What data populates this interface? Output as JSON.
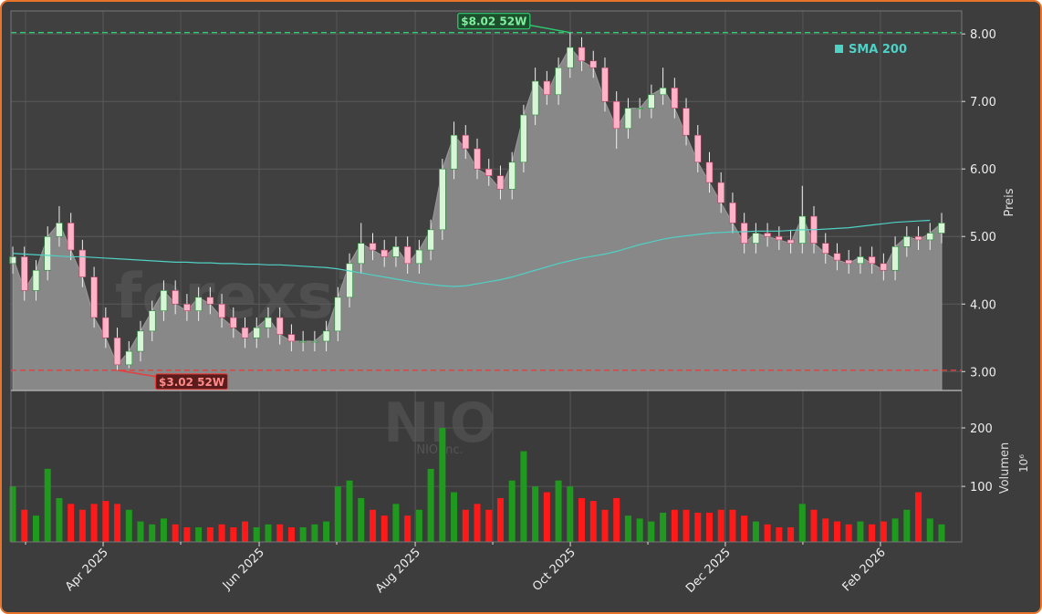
{
  "chart_data": {
    "type": "candlestick",
    "x": [
      0,
      1,
      2,
      3,
      4,
      5,
      6,
      7,
      8,
      9,
      10,
      11,
      12,
      13,
      14,
      15,
      16,
      17,
      18,
      19,
      20,
      21,
      22,
      23,
      24,
      25,
      26,
      27,
      28,
      29,
      30,
      31,
      32,
      33,
      34,
      35,
      36,
      37,
      38,
      39,
      40,
      41,
      42,
      43,
      44,
      45,
      46,
      47,
      48,
      49,
      50,
      51,
      52,
      53,
      54,
      55,
      56,
      57,
      58,
      59,
      60,
      61,
      62,
      63,
      64,
      65,
      66,
      67,
      68,
      69,
      70,
      71,
      72,
      73,
      74,
      75,
      76,
      77,
      78,
      79,
      80
    ],
    "open": [
      4.6,
      4.7,
      4.2,
      4.5,
      5.0,
      5.2,
      4.8,
      4.4,
      3.8,
      3.5,
      3.1,
      3.3,
      3.6,
      3.9,
      4.2,
      4.0,
      3.9,
      4.1,
      4.0,
      3.8,
      3.65,
      3.5,
      3.65,
      3.8,
      3.55,
      3.45,
      3.45,
      3.45,
      3.6,
      4.1,
      4.6,
      4.9,
      4.8,
      4.7,
      4.85,
      4.6,
      4.8,
      5.1,
      6.0,
      6.5,
      6.3,
      6.0,
      5.9,
      5.7,
      6.1,
      6.8,
      7.3,
      7.1,
      7.5,
      7.8,
      7.6,
      7.5,
      7.0,
      6.6,
      6.9,
      6.9,
      7.1,
      7.2,
      6.9,
      6.5,
      6.1,
      5.8,
      5.5,
      5.2,
      4.9,
      5.05,
      5.0,
      4.95,
      4.9,
      5.3,
      4.9,
      4.75,
      4.65,
      4.6,
      4.7,
      4.6,
      4.5,
      4.85,
      5.0,
      4.95,
      5.05
    ],
    "high": [
      4.85,
      4.85,
      4.65,
      5.15,
      5.45,
      5.35,
      4.95,
      4.55,
      3.95,
      3.65,
      3.45,
      3.75,
      4.05,
      4.35,
      4.35,
      4.15,
      4.25,
      4.25,
      4.15,
      3.95,
      3.8,
      3.8,
      3.95,
      3.95,
      3.7,
      3.6,
      3.6,
      3.75,
      4.25,
      4.75,
      5.2,
      5.05,
      4.95,
      5.0,
      5.0,
      4.95,
      5.25,
      6.15,
      6.7,
      6.65,
      6.45,
      6.15,
      6.05,
      6.25,
      6.95,
      7.5,
      7.45,
      7.65,
      8.02,
      7.95,
      7.75,
      7.65,
      7.15,
      7.05,
      7.05,
      7.25,
      7.5,
      7.35,
      7.05,
      6.65,
      6.25,
      5.95,
      5.65,
      5.35,
      5.2,
      5.2,
      5.15,
      5.1,
      5.75,
      5.45,
      5.05,
      4.9,
      4.8,
      4.85,
      4.85,
      4.75,
      5.0,
      5.15,
      5.15,
      5.2,
      5.35
    ],
    "low": [
      4.45,
      4.05,
      4.05,
      4.35,
      4.85,
      4.65,
      4.25,
      3.65,
      3.35,
      3.02,
      3.05,
      3.15,
      3.45,
      3.75,
      3.85,
      3.75,
      3.75,
      3.85,
      3.65,
      3.5,
      3.35,
      3.35,
      3.5,
      3.4,
      3.3,
      3.3,
      3.3,
      3.3,
      3.45,
      3.95,
      4.45,
      4.65,
      4.55,
      4.55,
      4.45,
      4.45,
      4.65,
      4.95,
      5.85,
      6.15,
      5.85,
      5.75,
      5.55,
      5.55,
      5.95,
      6.65,
      6.95,
      6.95,
      7.35,
      7.45,
      7.35,
      6.85,
      6.3,
      6.45,
      6.75,
      6.75,
      6.95,
      6.75,
      6.35,
      5.95,
      5.65,
      5.35,
      5.05,
      4.75,
      4.75,
      4.85,
      4.8,
      4.75,
      4.75,
      4.75,
      4.6,
      4.5,
      4.45,
      4.45,
      4.45,
      4.35,
      4.35,
      4.7,
      4.8,
      4.8,
      4.9
    ],
    "close": [
      4.7,
      4.2,
      4.5,
      5.0,
      5.2,
      4.8,
      4.4,
      3.8,
      3.5,
      3.1,
      3.3,
      3.6,
      3.9,
      4.2,
      4.0,
      3.9,
      4.1,
      4.0,
      3.8,
      3.65,
      3.5,
      3.65,
      3.8,
      3.55,
      3.45,
      3.45,
      3.45,
      3.6,
      4.1,
      4.6,
      4.9,
      4.8,
      4.7,
      4.85,
      4.6,
      4.8,
      5.1,
      6.0,
      6.5,
      6.3,
      6.0,
      5.9,
      5.7,
      6.1,
      6.8,
      7.3,
      7.1,
      7.5,
      7.8,
      7.6,
      7.5,
      7.0,
      6.6,
      6.9,
      6.9,
      7.1,
      7.2,
      6.9,
      6.5,
      6.1,
      5.8,
      5.5,
      5.2,
      4.9,
      5.05,
      5.0,
      4.95,
      4.9,
      5.3,
      4.9,
      4.75,
      4.65,
      4.6,
      4.7,
      4.6,
      4.5,
      4.85,
      5.0,
      4.95,
      5.05,
      5.2
    ],
    "volume": [
      100,
      60,
      50,
      130,
      80,
      70,
      60,
      70,
      75,
      70,
      60,
      40,
      35,
      45,
      35,
      30,
      30,
      30,
      35,
      30,
      40,
      30,
      35,
      35,
      30,
      30,
      35,
      40,
      100,
      110,
      80,
      60,
      50,
      70,
      50,
      60,
      130,
      200,
      90,
      60,
      70,
      60,
      80,
      110,
      160,
      100,
      90,
      110,
      100,
      80,
      75,
      60,
      80,
      50,
      45,
      40,
      55,
      60,
      60,
      55,
      55,
      60,
      60,
      50,
      40,
      35,
      30,
      30,
      70,
      60,
      45,
      40,
      35,
      40,
      35,
      40,
      45,
      60,
      90,
      45,
      35
    ],
    "sma": {
      "name": "SMA 200",
      "color": "#4fd1c5",
      "values": [
        4.75,
        4.74,
        4.73,
        4.72,
        4.71,
        4.7,
        4.7,
        4.69,
        4.68,
        4.67,
        4.66,
        4.65,
        4.64,
        4.63,
        4.62,
        4.62,
        4.61,
        4.61,
        4.6,
        4.6,
        4.59,
        4.59,
        4.58,
        4.58,
        4.57,
        4.56,
        4.55,
        4.54,
        4.52,
        4.49,
        4.46,
        4.43,
        4.4,
        4.37,
        4.34,
        4.31,
        4.29,
        4.27,
        4.26,
        4.27,
        4.3,
        4.33,
        4.36,
        4.4,
        4.45,
        4.5,
        4.55,
        4.6,
        4.64,
        4.68,
        4.71,
        4.74,
        4.78,
        4.83,
        4.88,
        4.92,
        4.96,
        4.99,
        5.01,
        5.03,
        5.05,
        5.06,
        5.07,
        5.07,
        5.08,
        5.08,
        5.08,
        5.09,
        5.1,
        5.1,
        5.11,
        5.12,
        5.13,
        5.15,
        5.17,
        5.19,
        5.21,
        5.22,
        5.23,
        5.24,
        null
      ]
    },
    "up_color": "#d8f5d8",
    "down_color": "#ffb3c9",
    "volume_up_color": "#1f9a1f",
    "volume_down_color": "#ff1a1a",
    "area_color": "#888888",
    "annotations": [
      {
        "text": "$8.02 52W",
        "value": 8.02,
        "x": 48,
        "color": "#2ecc71"
      },
      {
        "text": "$3.02 52W",
        "value": 3.02,
        "x": 9,
        "color": "#e53e3e"
      }
    ],
    "watermark": "forexsignale.trade",
    "symbol": "NIO",
    "company": "NIO Inc.",
    "ylabel": "Preis",
    "y2label": "Volumen",
    "y2unit": "10⁶",
    "xlim": [
      -0.16,
      81.73
    ],
    "xticks": [
      {
        "value": 7.78,
        "label": "Apr 2025"
      },
      {
        "value": 21.22,
        "label": "Jun 2025"
      },
      {
        "value": 34.66,
        "label": "Aug 2025"
      },
      {
        "value": 48.02,
        "label": "Oct 2025"
      },
      {
        "value": 61.37,
        "label": "Dec 2025"
      },
      {
        "value": 74.73,
        "label": "Feb 2026"
      }
    ],
    "xminorticks": [
      1.1,
      14.46,
      27.9,
      41.34,
      54.7,
      68.05
    ],
    "ylim": [
      2.72,
      8.34
    ],
    "yticks": [
      {
        "value": 3,
        "label": "3.00"
      },
      {
        "value": 4,
        "label": "4.00"
      },
      {
        "value": 5,
        "label": "5.00"
      },
      {
        "value": 6,
        "label": "6.00"
      },
      {
        "value": 7,
        "label": "7.00"
      },
      {
        "value": 8,
        "label": "8.00"
      }
    ],
    "y2lim": [
      5,
      264
    ],
    "y2ticks": [
      100,
      200
    ],
    "grid": true
  }
}
